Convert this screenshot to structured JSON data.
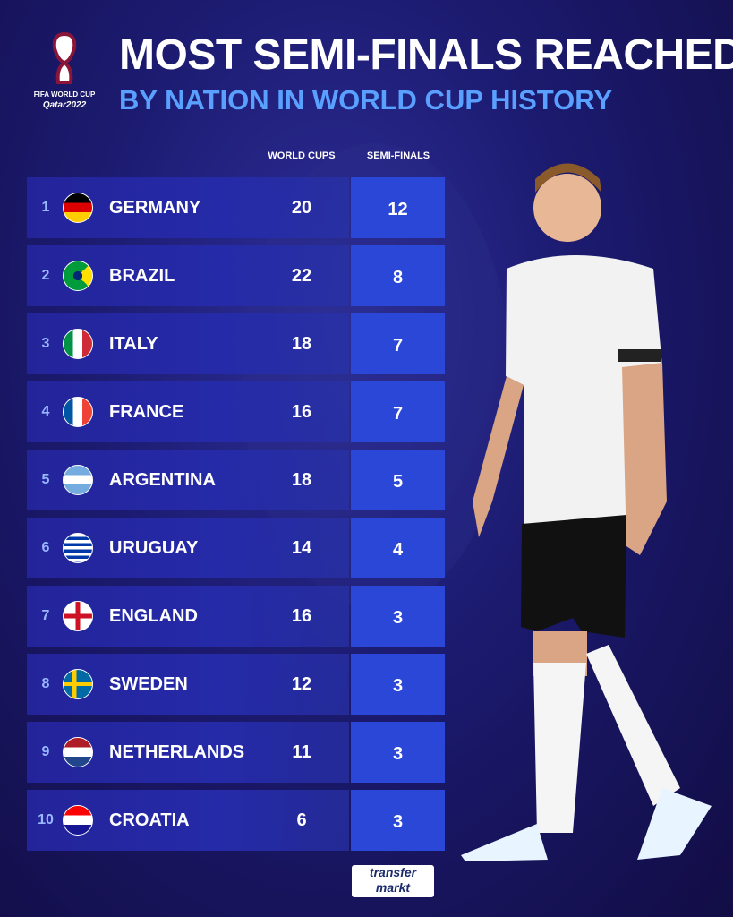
{
  "logo": {
    "line1": "FIFA WORLD CUP",
    "line2": "Qatar2022"
  },
  "header": {
    "title": "MOST SEMI-FINALS REACHED",
    "subtitle": "BY NATION IN WORLD CUP HISTORY"
  },
  "table": {
    "columns": [
      "WORLD CUPS",
      "SEMI-FINALS"
    ],
    "rows": [
      [
        1,
        "GERMANY",
        20,
        12
      ],
      [
        2,
        "BRAZIL",
        22,
        8
      ],
      [
        3,
        "ITALY",
        18,
        7
      ],
      [
        4,
        "FRANCE",
        16,
        7
      ],
      [
        5,
        "ARGENTINA",
        18,
        5
      ],
      [
        6,
        "URUGUAY",
        14,
        4
      ],
      [
        7,
        "ENGLAND",
        16,
        3
      ],
      [
        8,
        "SWEDEN",
        12,
        3
      ],
      [
        9,
        "NETHERLANDS",
        11,
        3
      ],
      [
        10,
        "CROATIA",
        6,
        3
      ]
    ]
  },
  "footer": {
    "brand_top": "transfer",
    "brand_bottom": "markt"
  }
}
